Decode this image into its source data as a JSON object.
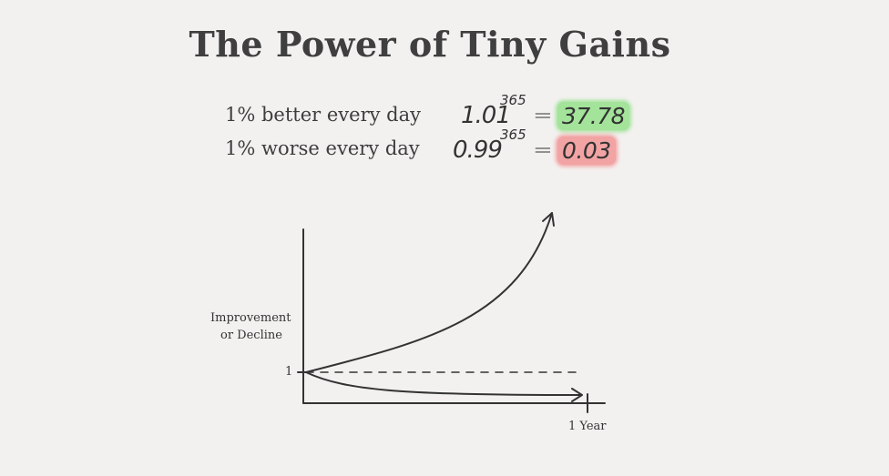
{
  "title": "The Power of Tiny Gains",
  "rows": [
    {
      "label": "1% better every day",
      "base": "1.01",
      "exponent": "365",
      "equals": "=",
      "result": "37.78",
      "highlight": "#a3e39a"
    },
    {
      "label": "1% worse every day",
      "base": "0.99",
      "exponent": "365",
      "equals": "=",
      "result": "0.03",
      "highlight": "#f2a3a3"
    }
  ],
  "chart_data": {
    "type": "line",
    "ylabel": "Improvement or Decline",
    "ylabel_lines": [
      "Improvement",
      "or Decline"
    ],
    "y_tick_label": "1",
    "x_tick_label": "1 Year",
    "series": [
      {
        "values": [
          1,
          37.78
        ]
      },
      {
        "values": [
          1,
          0.03
        ]
      }
    ],
    "baseline": 1,
    "grid": false
  }
}
